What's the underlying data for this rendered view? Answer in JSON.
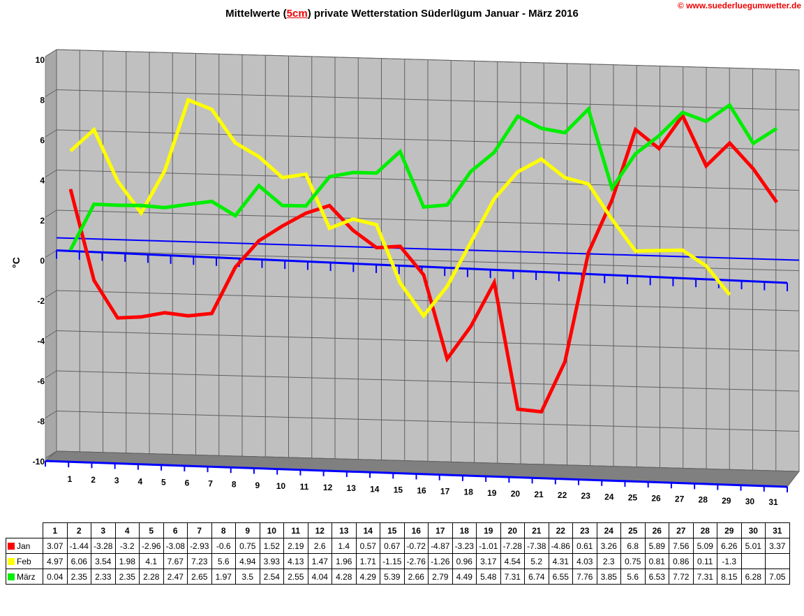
{
  "header": {
    "title_pre": "Mittelwerte (",
    "title_hl": "5cm",
    "title_post": ") private Wetterstation Süderlügum Januar - März 2016",
    "credit": "© www.suederluegumwetter.de"
  },
  "chart_data": {
    "type": "line",
    "title": "Mittelwerte (5cm) private Wetterstation Süderlügum Januar - März 2016",
    "ylabel": "°C",
    "xlabel": "",
    "ylim": [
      -10,
      10
    ],
    "yticks": [
      "10",
      "8",
      "6",
      "4",
      "2",
      "0",
      "-2",
      "-4",
      "-6",
      "-8",
      "-10"
    ],
    "grid": true,
    "legend": "table-below",
    "categories": [
      "1",
      "2",
      "3",
      "4",
      "5",
      "6",
      "7",
      "8",
      "9",
      "10",
      "11",
      "12",
      "13",
      "14",
      "15",
      "16",
      "17",
      "18",
      "19",
      "20",
      "21",
      "22",
      "23",
      "24",
      "25",
      "26",
      "27",
      "28",
      "29",
      "30",
      "31"
    ],
    "series": [
      {
        "name": "Jan",
        "color": "#ff0000",
        "values": [
          3.07,
          -1.44,
          -3.28,
          -3.2,
          -2.96,
          -3.08,
          -2.93,
          -0.6,
          0.75,
          1.52,
          2.19,
          2.6,
          1.4,
          0.57,
          0.67,
          -0.72,
          -4.87,
          -3.23,
          -1.01,
          -7.28,
          -7.38,
          -4.86,
          0.61,
          3.26,
          6.8,
          5.89,
          7.56,
          5.09,
          6.26,
          5.01,
          3.37
        ]
      },
      {
        "name": "Feb",
        "color": "#ffff00",
        "values": [
          4.97,
          6.06,
          3.54,
          1.98,
          4.1,
          7.67,
          7.23,
          5.6,
          4.94,
          3.93,
          4.13,
          1.47,
          1.96,
          1.71,
          -1.15,
          -2.76,
          -1.26,
          0.96,
          3.17,
          4.54,
          5.2,
          4.31,
          4.03,
          2.3,
          0.75,
          0.81,
          0.86,
          0.11,
          -1.3,
          null,
          null
        ]
      },
      {
        "name": "März",
        "color": "#00ee00",
        "values": [
          0.04,
          2.35,
          2.33,
          2.35,
          2.28,
          2.47,
          2.65,
          1.97,
          3.5,
          2.54,
          2.55,
          4.04,
          4.28,
          4.29,
          5.39,
          2.66,
          2.79,
          4.49,
          5.48,
          7.31,
          6.74,
          6.55,
          7.76,
          3.85,
          5.6,
          6.53,
          7.72,
          7.31,
          8.15,
          6.28,
          7.05
        ]
      }
    ]
  }
}
